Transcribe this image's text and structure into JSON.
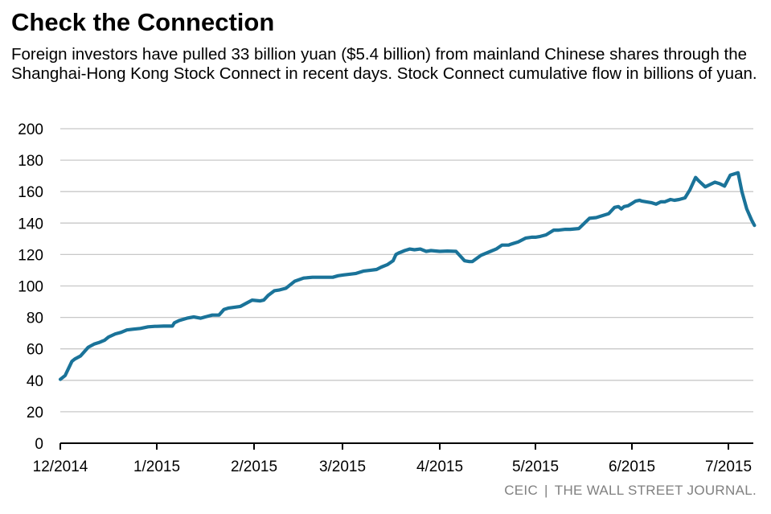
{
  "title": "Check the Connection",
  "subtitle": "Foreign investors have pulled 33 billion yuan ($5.4 billion) from mainland Chinese shares through the Shanghai-Hong Kong Stock Connect in recent days. Stock Connect cumulative flow in billions of yuan.",
  "source": {
    "provider": "CEIC",
    "separator": "|",
    "publisher": "THE WALL STREET JOURNAL."
  },
  "colors": {
    "line": "#1a7399",
    "grid": "#c8c8c8",
    "axis": "#000000"
  },
  "chart_data": {
    "type": "line",
    "title": "Check the Connection",
    "xlabel": "",
    "ylabel": "Stock Connect cumulative flow (billions of yuan)",
    "ylim": [
      0,
      200
    ],
    "yticks": [
      0,
      20,
      40,
      60,
      80,
      100,
      120,
      140,
      160,
      180,
      200
    ],
    "xlim": [
      0,
      7.35
    ],
    "xticks": [
      {
        "pos": 0,
        "label": "12/2014"
      },
      {
        "pos": 1,
        "label": "1/2015"
      },
      {
        "pos": 2,
        "label": "2/2015"
      },
      {
        "pos": 3,
        "label": "3/2015"
      },
      {
        "pos": 4,
        "label": "4/2015"
      },
      {
        "pos": 5,
        "label": "5/2015"
      },
      {
        "pos": 6,
        "label": "6/2015"
      },
      {
        "pos": 7,
        "label": "7/2015"
      }
    ],
    "series": [
      {
        "name": "Cumulative flow",
        "x": [
          0,
          0.05,
          0.12,
          0.15,
          0.21,
          0.29,
          0.35,
          0.4,
          0.46,
          0.5,
          0.57,
          0.63,
          0.69,
          0.75,
          0.83,
          0.91,
          0.98,
          1.0,
          1.07,
          1.16,
          1.18,
          1.23,
          1.31,
          1.38,
          1.45,
          1.51,
          1.57,
          1.64,
          1.69,
          1.74,
          1.8,
          1.86,
          1.92,
          1.98,
          2.07,
          2.11,
          2.16,
          2.23,
          2.29,
          2.36,
          2.46,
          2.56,
          2.66,
          2.76,
          2.81,
          2.89,
          2.95,
          3.01,
          3.08,
          3.14,
          3.22,
          3.29,
          3.35,
          3.4,
          3.46,
          3.52,
          3.55,
          3.58,
          3.6,
          3.64,
          3.69,
          3.74,
          3.8,
          3.86,
          3.91,
          4.0,
          4.08,
          4.17,
          4.26,
          4.31,
          4.34,
          4.43,
          4.53,
          4.59,
          4.65,
          4.72,
          4.74,
          4.82,
          4.9,
          4.96,
          5.0,
          5.05,
          5.11,
          5.19,
          5.24,
          5.31,
          5.36,
          5.45,
          5.56,
          5.63,
          5.71,
          5.76,
          5.82,
          5.86,
          5.89,
          5.92,
          5.96,
          6.0,
          6.04,
          6.08,
          6.1,
          6.2,
          6.25,
          6.3,
          6.34,
          6.4,
          6.44,
          6.49,
          6.55,
          6.6,
          6.63,
          6.66,
          6.69,
          6.76,
          6.81,
          6.86,
          6.91,
          6.96,
          7.02,
          7.1,
          7.14,
          7.19,
          7.24,
          7.27
        ],
        "values": [
          40.6,
          43,
          52,
          53.5,
          55.5,
          61,
          63,
          64,
          65.5,
          67.5,
          69.5,
          70.5,
          72,
          72.5,
          73,
          74,
          74.3,
          74.3,
          74.5,
          74.5,
          76.5,
          78,
          79.5,
          80.3,
          79.5,
          80.5,
          81.5,
          81.5,
          85,
          86,
          86.5,
          87,
          89,
          91,
          90.5,
          91,
          94,
          97,
          97.5,
          98.5,
          103,
          105,
          105.5,
          105.5,
          105.5,
          105.5,
          106.5,
          107,
          107.5,
          108,
          109.5,
          110,
          110.5,
          112,
          113.5,
          116,
          120,
          121,
          121.5,
          122.5,
          123.5,
          123,
          123.5,
          122,
          122.5,
          122,
          122.2,
          122,
          116,
          115.5,
          115.5,
          119.5,
          122,
          123.5,
          126,
          126,
          126.5,
          128,
          130.5,
          131,
          131,
          131.5,
          132.5,
          135.5,
          135.5,
          136,
          136,
          136.5,
          143,
          143.5,
          145,
          146,
          150,
          150.5,
          149,
          150.5,
          151,
          152.5,
          154,
          154.5,
          154,
          153,
          152,
          153.5,
          153.5,
          155,
          154.5,
          155,
          156,
          161,
          165,
          169,
          167,
          163,
          164.5,
          166,
          165,
          163.5,
          170.5,
          172,
          160,
          149,
          142,
          138.5
        ]
      }
    ]
  }
}
